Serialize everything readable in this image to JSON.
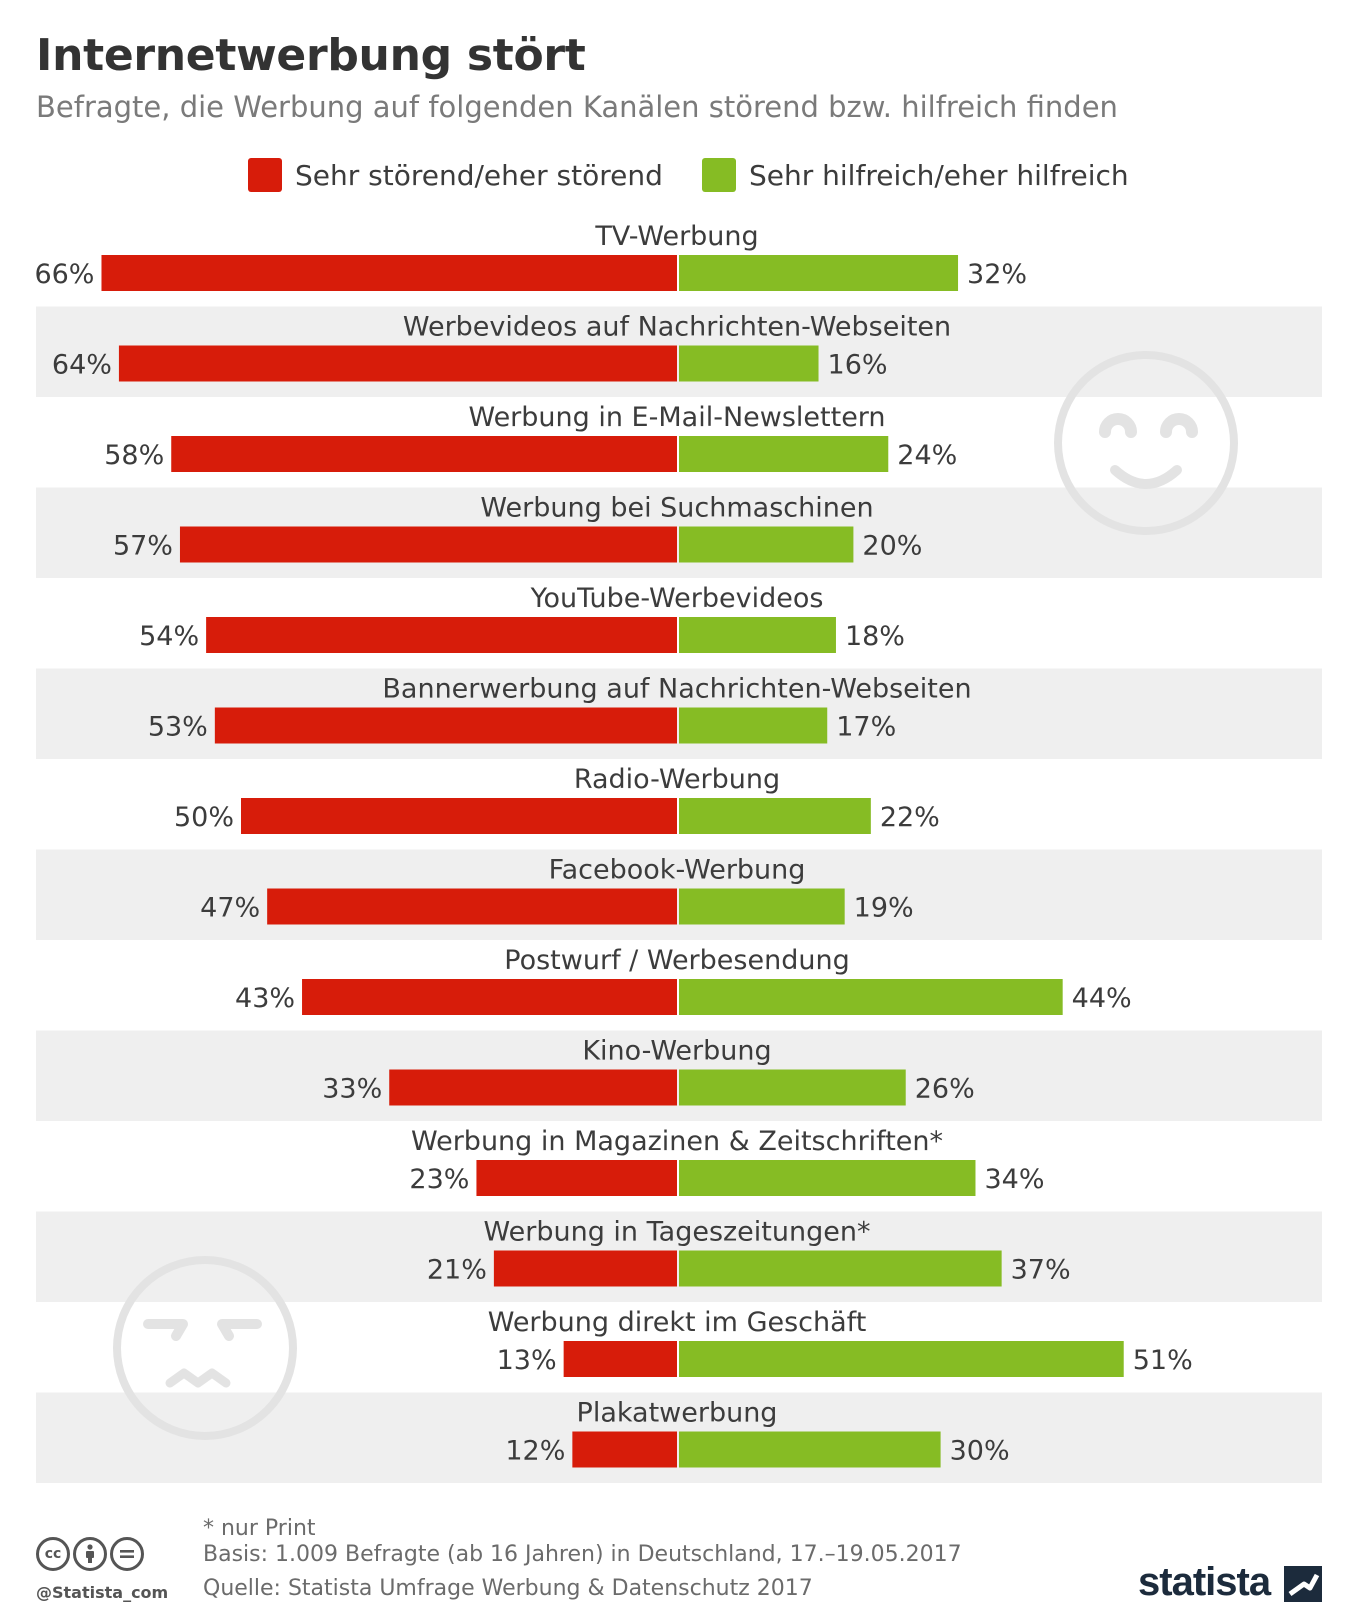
{
  "title": "Internetwerbung stört",
  "subtitle": "Befragte, die Werbung auf folgenden Kanälen störend bzw. hilfreich finden",
  "colors": {
    "stoerend": "#d71c0a",
    "hilfreich": "#86bc24",
    "band": "#efefef",
    "text": "#3c3c3c",
    "face": "#e3e3e3"
  },
  "chart_data": {
    "type": "bar",
    "orientation": "horizontal-diverging",
    "value_unit": "%",
    "categories": [
      "TV-Werbung",
      "Werbevideos auf Nachrichten-Webseiten",
      "Werbung in E-Mail-Newslettern",
      "Werbung bei Suchmaschinen",
      "YouTube-Werbevideos",
      "Bannerwerbung auf Nachrichten-Webseiten",
      "Radio-Werbung",
      "Facebook-Werbung",
      "Postwurf / Werbesendung",
      "Kino-Werbung",
      "Werbung in Magazinen & Zeitschriften*",
      "Werbung in Tageszeitungen*",
      "Werbung direkt im Geschäft",
      "Plakatwerbung"
    ],
    "series": [
      {
        "name": "Sehr störend/eher störend",
        "direction": "left",
        "values": [
          66,
          64,
          58,
          57,
          54,
          53,
          50,
          47,
          43,
          33,
          23,
          21,
          13,
          12
        ]
      },
      {
        "name": "Sehr hilfreich/eher hilfreich",
        "direction": "right",
        "values": [
          32,
          16,
          24,
          20,
          18,
          17,
          22,
          19,
          44,
          26,
          34,
          37,
          51,
          30
        ]
      }
    ],
    "xlim": [
      0,
      70
    ],
    "grid": false,
    "legend": "top-center"
  },
  "legend": {
    "items": [
      {
        "label": "Sehr störend/eher störend"
      },
      {
        "label": "Sehr hilfreich/eher hilfreich"
      }
    ]
  },
  "footer": {
    "footnote": "* nur Print",
    "basis": "Basis: 1.009 Befragte (ab 16 Jahren) in Deutschland, 17.–19.05.2017",
    "source": "Quelle: Statista Umfrage Werbung & Datenschutz 2017",
    "handle": "@Statista_com",
    "brand": "statista",
    "cc_icons": [
      "cc-icon",
      "by-icon",
      "nd-icon"
    ]
  }
}
